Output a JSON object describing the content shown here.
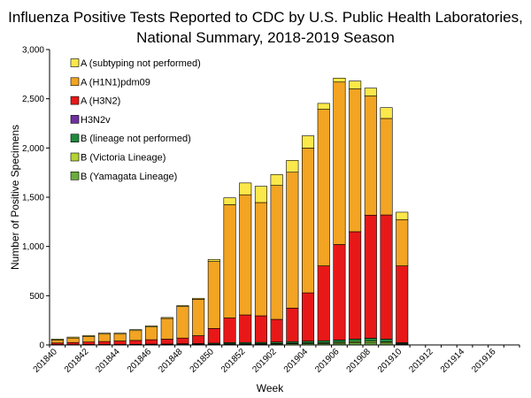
{
  "chart_data": {
    "type": "bar",
    "stacked": true,
    "title": [
      "Influenza Positive Tests Reported to CDC by U.S. Public Health Laboratories,",
      "National Summary, 2018-2019 Season"
    ],
    "xlabel": "Week",
    "ylabel": "Number of Positive Specimens",
    "ylim": [
      0,
      3000
    ],
    "yticks": [
      "0",
      "500",
      "1,000",
      "1,500",
      "2,000",
      "2,500",
      "3,000"
    ],
    "ytick_values": [
      0,
      500,
      1000,
      1500,
      2000,
      2500,
      3000
    ],
    "categories": [
      "201840",
      "201841",
      "201842",
      "201843",
      "201844",
      "201845",
      "201846",
      "201847",
      "201848",
      "201849",
      "201850",
      "201851",
      "201852",
      "201901",
      "201902",
      "201903",
      "201904",
      "201905",
      "201906",
      "201907",
      "201908",
      "201909",
      "201910",
      "201911",
      "201912",
      "201913",
      "201914",
      "201915",
      "201916",
      "201917"
    ],
    "xtick_labels": [
      "201840",
      "201842",
      "201844",
      "201846",
      "201848",
      "201850",
      "201852",
      "201902",
      "201904",
      "201906",
      "201908",
      "201910",
      "201912",
      "201914",
      "201916"
    ],
    "legend_position": "top-left",
    "series": [
      {
        "name": "B (Yamagata Lineage)",
        "color": "#6aad3d",
        "values": [
          1,
          1,
          1,
          1,
          1,
          1,
          2,
          2,
          3,
          3,
          5,
          8,
          8,
          8,
          10,
          12,
          14,
          15,
          18,
          22,
          25,
          20,
          8,
          0,
          0,
          0,
          0,
          0,
          0,
          0
        ]
      },
      {
        "name": "B (Victoria Lineage)",
        "color": "#b5d334",
        "values": [
          1,
          1,
          1,
          1,
          1,
          1,
          1,
          2,
          2,
          3,
          3,
          4,
          4,
          5,
          6,
          6,
          7,
          8,
          10,
          12,
          13,
          12,
          5,
          0,
          0,
          0,
          0,
          0,
          0,
          0
        ]
      },
      {
        "name": "B (lineage not performed)",
        "color": "#1e8a3c",
        "values": [
          2,
          2,
          3,
          3,
          3,
          4,
          5,
          5,
          7,
          8,
          10,
          12,
          13,
          13,
          14,
          16,
          18,
          20,
          22,
          26,
          30,
          28,
          10,
          0,
          0,
          0,
          0,
          0,
          0,
          0
        ]
      },
      {
        "name": "H3N2v",
        "color": "#7030a0",
        "values": [
          0,
          0,
          0,
          0,
          0,
          0,
          0,
          0,
          0,
          0,
          0,
          0,
          0,
          0,
          0,
          0,
          0,
          0,
          0,
          0,
          0,
          0,
          0,
          0,
          0,
          0,
          0,
          0,
          0,
          0
        ]
      },
      {
        "name": "A (H3N2)",
        "color": "#e81818",
        "values": [
          16,
          21,
          25,
          30,
          35,
          40,
          45,
          50,
          58,
          80,
          150,
          250,
          280,
          270,
          230,
          340,
          490,
          760,
          970,
          1090,
          1250,
          1260,
          780,
          0,
          0,
          0,
          0,
          0,
          0,
          0
        ]
      },
      {
        "name": "A (H1N1)pdm09",
        "color": "#f2a422",
        "values": [
          30,
          45,
          55,
          75,
          70,
          100,
          130,
          210,
          320,
          370,
          680,
          1150,
          1220,
          1150,
          1360,
          1380,
          1470,
          1590,
          1650,
          1450,
          1210,
          980,
          470,
          0,
          0,
          0,
          0,
          0,
          0,
          0
        ]
      },
      {
        "name": "A (subtyping not performed)",
        "color": "#fbe84a",
        "values": [
          10,
          10,
          10,
          10,
          10,
          10,
          10,
          10,
          10,
          10,
          20,
          70,
          120,
          165,
          110,
          120,
          125,
          60,
          40,
          80,
          80,
          110,
          75,
          0,
          0,
          0,
          0,
          0,
          0,
          0
        ]
      }
    ],
    "legend_order": [
      "A (subtyping not performed)",
      "A (H1N1)pdm09",
      "A (H3N2)",
      "H3N2v",
      "B (lineage not performed)",
      "B (Victoria Lineage)",
      "B (Yamagata Lineage)"
    ]
  }
}
